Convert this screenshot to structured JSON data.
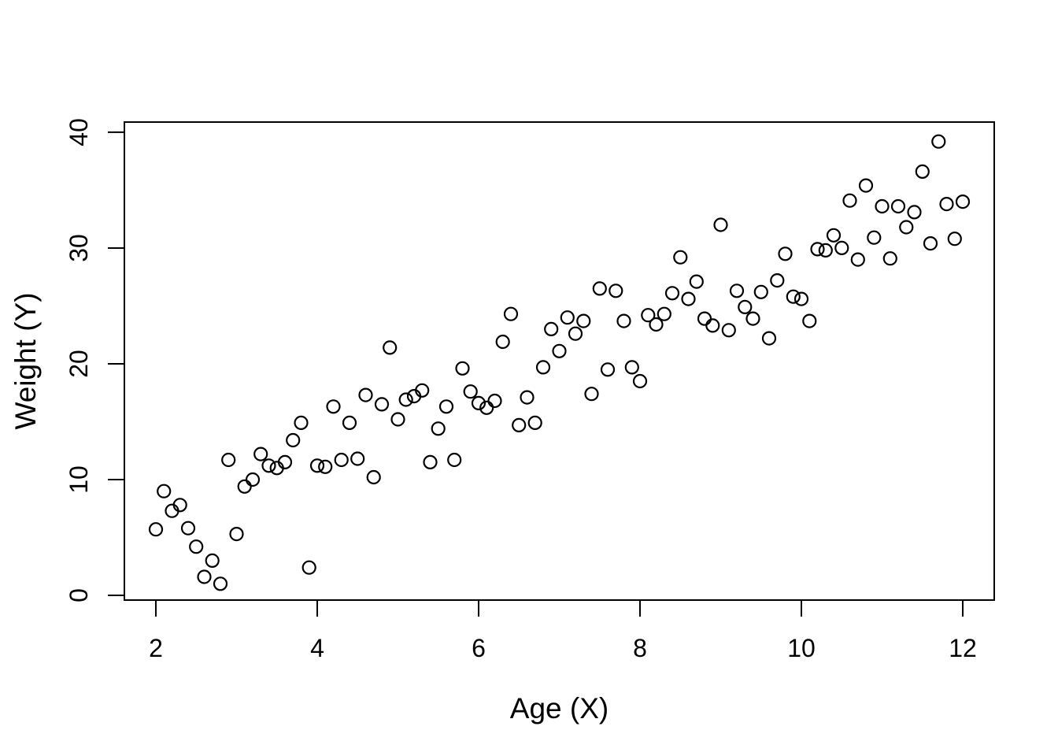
{
  "figure": {
    "background": "#ffffff",
    "foreground": "#000000"
  },
  "chart_data": {
    "type": "scatter",
    "title": "",
    "xlabel": "Age (X)",
    "ylabel": "Weight (Y)",
    "x_ticks": [
      2,
      4,
      6,
      8,
      10,
      12
    ],
    "y_ticks": [
      0,
      10,
      20,
      30,
      40
    ],
    "xlim": [
      1.61,
      12.39
    ],
    "ylim": [
      -0.41,
      40.88
    ],
    "grid": false,
    "legend": "none",
    "marker": "open-circle",
    "marker_color": "#000000",
    "points": [
      [
        2.0,
        5.7
      ],
      [
        2.1,
        9.0
      ],
      [
        2.2,
        7.3
      ],
      [
        2.3,
        7.8
      ],
      [
        2.4,
        5.8
      ],
      [
        2.5,
        4.2
      ],
      [
        2.6,
        1.6
      ],
      [
        2.7,
        3.0
      ],
      [
        2.8,
        1.0
      ],
      [
        2.9,
        11.7
      ],
      [
        3.0,
        5.3
      ],
      [
        3.1,
        9.4
      ],
      [
        3.2,
        10.0
      ],
      [
        3.3,
        12.2
      ],
      [
        3.4,
        11.2
      ],
      [
        3.5,
        11.0
      ],
      [
        3.6,
        11.5
      ],
      [
        3.7,
        13.4
      ],
      [
        3.8,
        14.9
      ],
      [
        3.9,
        2.4
      ],
      [
        4.0,
        11.2
      ],
      [
        4.1,
        11.1
      ],
      [
        4.2,
        16.3
      ],
      [
        4.3,
        11.7
      ],
      [
        4.4,
        14.9
      ],
      [
        4.5,
        11.8
      ],
      [
        4.6,
        17.3
      ],
      [
        4.7,
        10.2
      ],
      [
        4.8,
        16.5
      ],
      [
        4.9,
        21.4
      ],
      [
        5.0,
        15.2
      ],
      [
        5.1,
        16.9
      ],
      [
        5.2,
        17.2
      ],
      [
        5.3,
        17.7
      ],
      [
        5.4,
        11.5
      ],
      [
        5.5,
        14.4
      ],
      [
        5.6,
        16.3
      ],
      [
        5.7,
        11.7
      ],
      [
        5.8,
        19.6
      ],
      [
        5.9,
        17.6
      ],
      [
        6.0,
        16.6
      ],
      [
        6.1,
        16.2
      ],
      [
        6.2,
        16.8
      ],
      [
        6.3,
        21.9
      ],
      [
        6.4,
        24.3
      ],
      [
        6.5,
        14.7
      ],
      [
        6.6,
        17.1
      ],
      [
        6.7,
        14.9
      ],
      [
        6.8,
        19.7
      ],
      [
        6.9,
        23.0
      ],
      [
        7.0,
        21.1
      ],
      [
        7.1,
        24.0
      ],
      [
        7.2,
        22.6
      ],
      [
        7.3,
        23.7
      ],
      [
        7.4,
        17.4
      ],
      [
        7.5,
        26.5
      ],
      [
        7.6,
        19.5
      ],
      [
        7.7,
        26.3
      ],
      [
        7.8,
        23.7
      ],
      [
        7.9,
        19.7
      ],
      [
        8.0,
        18.5
      ],
      [
        8.1,
        24.2
      ],
      [
        8.2,
        23.4
      ],
      [
        8.3,
        24.3
      ],
      [
        8.4,
        26.1
      ],
      [
        8.5,
        29.2
      ],
      [
        8.6,
        25.6
      ],
      [
        8.7,
        27.1
      ],
      [
        8.8,
        23.9
      ],
      [
        8.9,
        23.3
      ],
      [
        9.0,
        32.0
      ],
      [
        9.1,
        22.9
      ],
      [
        9.2,
        26.3
      ],
      [
        9.3,
        24.9
      ],
      [
        9.4,
        23.9
      ],
      [
        9.5,
        26.2
      ],
      [
        9.6,
        22.2
      ],
      [
        9.7,
        27.2
      ],
      [
        9.8,
        29.5
      ],
      [
        9.9,
        25.8
      ],
      [
        10.0,
        25.6
      ],
      [
        10.1,
        23.7
      ],
      [
        10.2,
        29.9
      ],
      [
        10.3,
        29.8
      ],
      [
        10.4,
        31.1
      ],
      [
        10.5,
        30.0
      ],
      [
        10.6,
        34.1
      ],
      [
        10.7,
        29.0
      ],
      [
        10.8,
        35.4
      ],
      [
        10.9,
        30.9
      ],
      [
        11.0,
        33.6
      ],
      [
        11.1,
        29.1
      ],
      [
        11.2,
        33.6
      ],
      [
        11.3,
        31.8
      ],
      [
        11.4,
        33.1
      ],
      [
        11.5,
        36.6
      ],
      [
        11.6,
        30.4
      ],
      [
        11.7,
        39.2
      ],
      [
        11.8,
        33.8
      ],
      [
        11.9,
        30.8
      ],
      [
        12.0,
        34.0
      ]
    ]
  }
}
